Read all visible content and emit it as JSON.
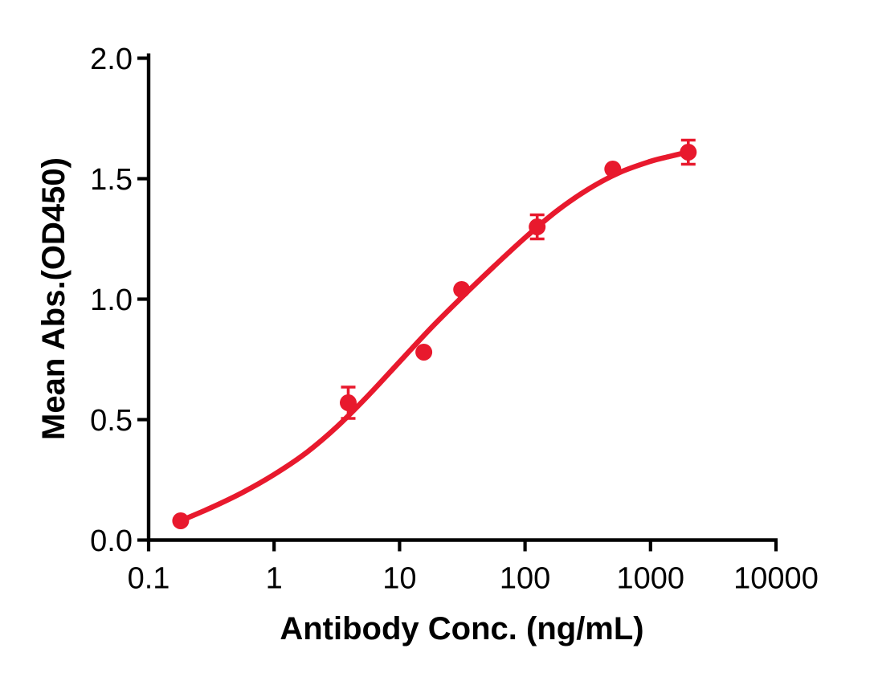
{
  "figure": {
    "background": "#ffffff",
    "axis_color": "#000000",
    "accent_red": "#E8192D"
  },
  "chart_data": {
    "type": "scatter",
    "subtype": "dose-response curve with 4PL fit and error bars",
    "title": "",
    "xlabel": "Antibody Conc. (ng/mL)",
    "ylabel": "Mean Abs.(OD450)",
    "x_scale": "log",
    "y_scale": "linear",
    "xlim": [
      0.1,
      10000
    ],
    "ylim": [
      0.0,
      2.0
    ],
    "grid": false,
    "legend": "none",
    "x_ticks": {
      "values": [
        0.1,
        1,
        10,
        100,
        1000,
        10000
      ],
      "labels": [
        "0.1",
        "1",
        "10",
        "100",
        "1000",
        "10000"
      ]
    },
    "y_ticks": {
      "values": [
        0.0,
        0.5,
        1.0,
        1.5,
        2.0
      ],
      "labels": [
        "0.0",
        "0.5",
        "1.0",
        "1.5",
        "2.0"
      ]
    },
    "series": [
      {
        "name": "Mean Abs.(OD450)",
        "color": "#E8192D",
        "marker": "circle",
        "points": [
          {
            "x": 0.18,
            "y": 0.08,
            "err": 0
          },
          {
            "x": 3.9,
            "y": 0.57,
            "err": 0.065
          },
          {
            "x": 15.6,
            "y": 0.78,
            "err": 0
          },
          {
            "x": 31.25,
            "y": 1.04,
            "err": 0
          },
          {
            "x": 125,
            "y": 1.3,
            "err": 0.05
          },
          {
            "x": 500,
            "y": 1.54,
            "err": 0
          },
          {
            "x": 2000,
            "y": 1.61,
            "err": 0.05
          }
        ],
        "fit_curve_samples": [
          [
            -0.745,
            0.08
          ],
          [
            -0.5,
            0.135
          ],
          [
            -0.25,
            0.198
          ],
          [
            0.0,
            0.272
          ],
          [
            0.25,
            0.36
          ],
          [
            0.5,
            0.47
          ],
          [
            0.75,
            0.6
          ],
          [
            1.0,
            0.74
          ],
          [
            1.25,
            0.88
          ],
          [
            1.5,
            1.01
          ],
          [
            1.75,
            1.135
          ],
          [
            2.0,
            1.255
          ],
          [
            2.25,
            1.365
          ],
          [
            2.5,
            1.455
          ],
          [
            2.75,
            1.525
          ],
          [
            3.0,
            1.572
          ],
          [
            3.15,
            1.592
          ],
          [
            3.293,
            1.61
          ]
        ]
      }
    ]
  }
}
